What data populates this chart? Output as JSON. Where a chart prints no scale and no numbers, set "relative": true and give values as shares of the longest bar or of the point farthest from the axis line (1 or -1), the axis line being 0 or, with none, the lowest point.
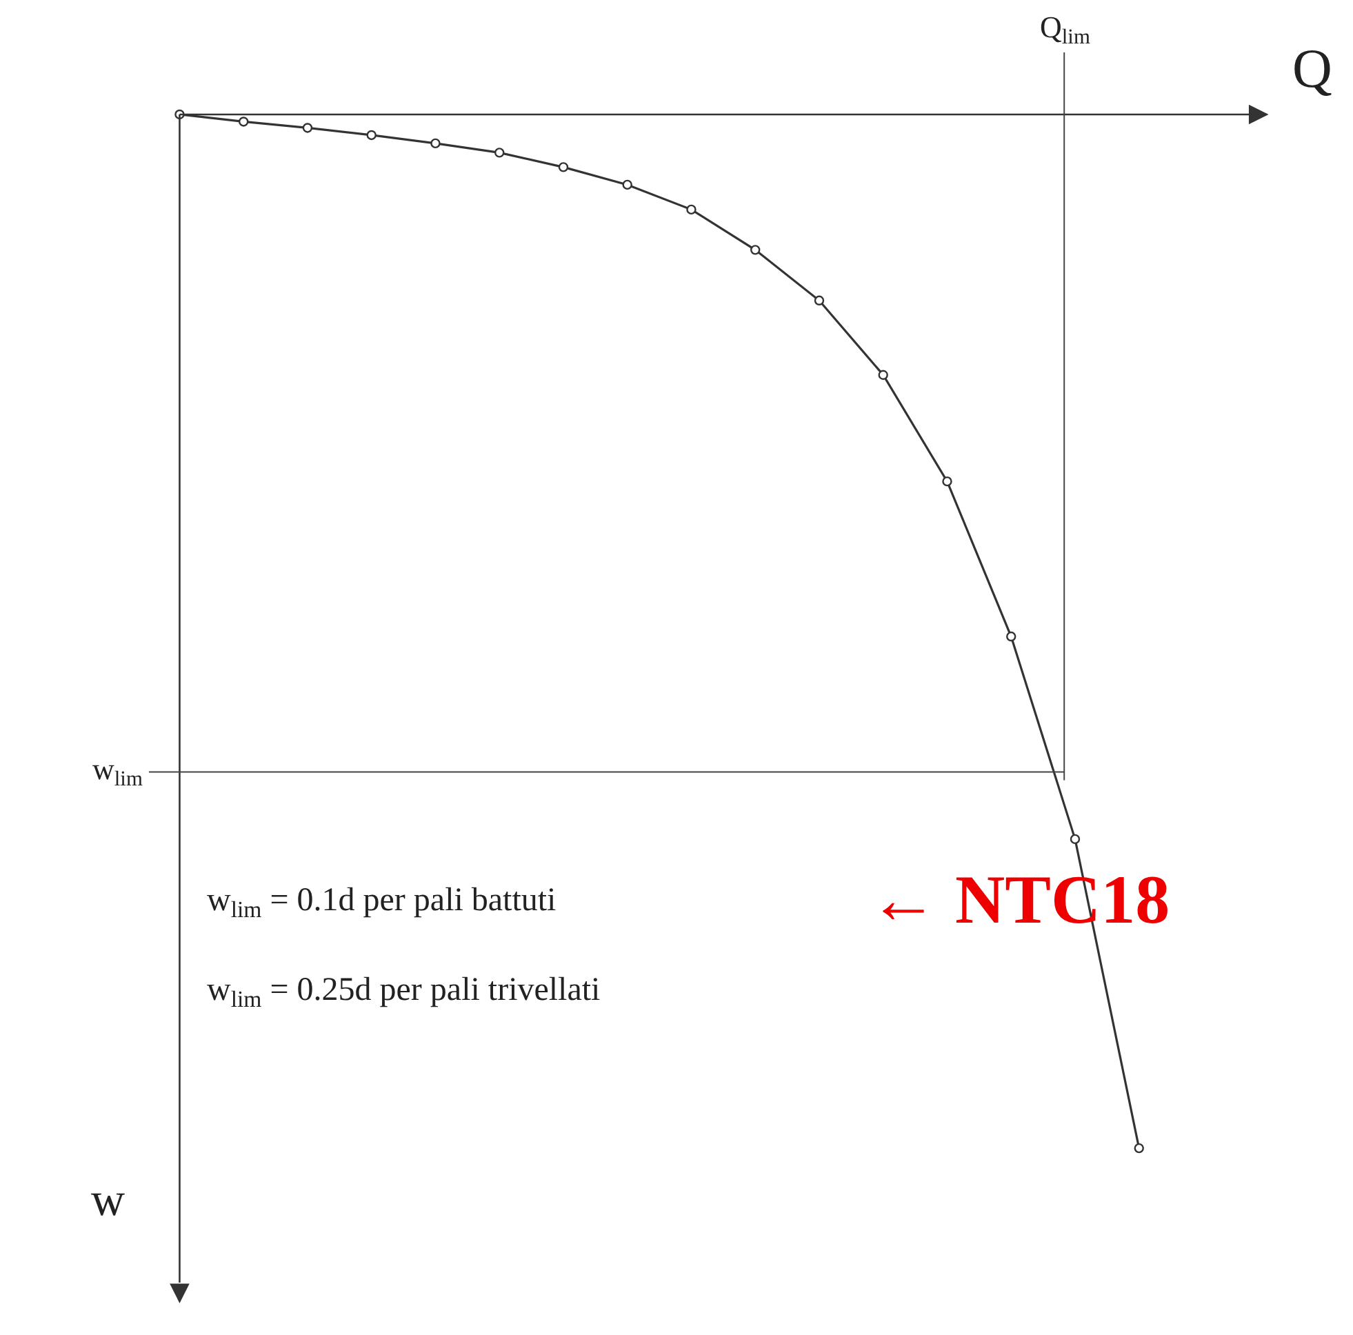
{
  "chart_data": {
    "type": "line",
    "relative": true,
    "xlabel": "Q",
    "ylabel": "w",
    "categories": [
      null,
      null,
      null,
      null,
      null,
      null,
      null,
      null,
      null,
      null,
      null,
      null,
      null,
      null,
      null,
      null
    ],
    "series": [
      {
        "color": "#333333",
        "values": [
          0,
          -0.007,
          -0.013,
          -0.02,
          -0.028,
          -0.037,
          -0.051,
          -0.068,
          -0.092,
          -0.131,
          -0.18,
          -0.252,
          -0.355,
          -0.505,
          -0.701,
          -1
        ]
      }
    ],
    "ref_lines": [
      {
        "axis": "y",
        "value": -0.636,
        "label": "w$_{lim}$",
        "color": "#444444"
      }
    ],
    "annotations": [
      "w$_{lim}$ = 0.1d per pali battuti",
      "w$_{lim}$ = 0.25d per pali trivellati",
      "← NTC18",
      "Q$_{lim}$"
    ],
    "marker": "circle",
    "line_style": "solid"
  }
}
